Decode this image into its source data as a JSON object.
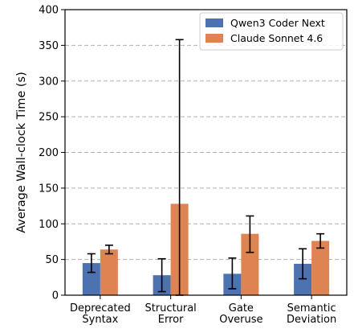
{
  "chart_data": {
    "type": "bar",
    "categories": [
      [
        "Deprecated",
        "Syntax"
      ],
      [
        "Structural",
        "Error"
      ],
      [
        "Gate",
        "Overuse"
      ],
      [
        "Semantic",
        "Deviation"
      ]
    ],
    "series": [
      {
        "name": "Qwen3 Coder Next",
        "color": "#4c72b0",
        "values": [
          45,
          28,
          30,
          44
        ],
        "err_low": [
          32,
          5,
          9,
          23
        ],
        "err_high": [
          58,
          51,
          52,
          65
        ]
      },
      {
        "name": "Claude Sonnet 4.6",
        "color": "#dd8452",
        "values": [
          64,
          128,
          86,
          76
        ],
        "err_low": [
          58,
          0,
          60,
          66
        ],
        "err_high": [
          70,
          358,
          111,
          86
        ]
      }
    ],
    "title": "",
    "xlabel": "",
    "ylabel": "Average Wall-clock Time (s)",
    "ylim": [
      0,
      400
    ],
    "yticks": [
      0,
      50,
      100,
      150,
      200,
      250,
      300,
      350,
      400
    ],
    "grid": "y-dashed",
    "legend": "top-right"
  }
}
